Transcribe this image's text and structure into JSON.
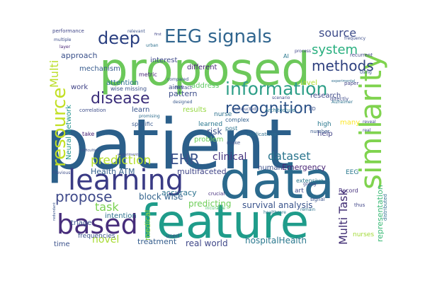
{
  "word_cloud": {
    "words": [
      {
        "text": "patient",
        "color": "#2b5f8a"
      },
      {
        "text": "data",
        "color": "#2b6a8d"
      },
      {
        "text": "feature",
        "color": "#1f9c8a"
      },
      {
        "text": "proposed",
        "color": "#6cc85a"
      },
      {
        "text": "similarity",
        "color": "#7fd34e"
      },
      {
        "text": "learning",
        "color": "#3a3b85"
      },
      {
        "text": "based",
        "color": "#472d7b"
      },
      {
        "text": "EEG signals",
        "color": "#30658e"
      },
      {
        "text": "information",
        "color": "#2e9f88"
      },
      {
        "text": "deep",
        "color": "#2a3f80"
      },
      {
        "text": "resource",
        "color": "#c2df23"
      },
      {
        "text": "disease",
        "color": "#3b2e7a"
      },
      {
        "text": "recognition",
        "color": "#2c5186"
      },
      {
        "text": "propose",
        "color": "#3f4a8a"
      },
      {
        "text": "methods",
        "color": "#2d3f7e"
      },
      {
        "text": "system",
        "color": "#29af7f"
      },
      {
        "text": "source",
        "color": "#3e4c8a"
      },
      {
        "text": "prediction",
        "color": "#b5de2b"
      },
      {
        "text": "EHR",
        "color": "#3a528b"
      },
      {
        "text": "task",
        "color": "#7ad151"
      },
      {
        "text": "dataset",
        "color": "#2b758e"
      },
      {
        "text": "Multi Task",
        "color": "#3f2b72"
      },
      {
        "text": "novel",
        "color": "#a8db34"
      },
      {
        "text": "Health ATM",
        "color": "#34618d"
      },
      {
        "text": "clinical",
        "color": "#46337e"
      },
      {
        "text": "survival analysis",
        "color": "#3a548c"
      },
      {
        "text": "hospitalHealth",
        "color": "#2a788e"
      },
      {
        "text": "real world",
        "color": "#3f4788"
      },
      {
        "text": "treatment",
        "color": "#355e8d"
      },
      {
        "text": "accuracy",
        "color": "#2c728e"
      },
      {
        "text": "predicting",
        "color": "#6ece58"
      },
      {
        "text": "block wise",
        "color": "#33638d"
      },
      {
        "text": "multifaceted",
        "color": "#404588"
      },
      {
        "text": "Emergency",
        "color": "#482475"
      },
      {
        "text": "Multi",
        "color": "#bade28"
      },
      {
        "text": "approach",
        "color": "#3b518b"
      },
      {
        "text": "mechanism",
        "color": "#375b8d"
      },
      {
        "text": "different",
        "color": "#482878"
      },
      {
        "text": "interest",
        "color": "#3e4989"
      },
      {
        "text": "attention",
        "color": "#2d708e"
      },
      {
        "text": "work",
        "color": "#414487"
      },
      {
        "text": "learn",
        "color": "#39558c"
      },
      {
        "text": "pattern",
        "color": "#3d4e8a"
      },
      {
        "text": "results",
        "color": "#95d840"
      },
      {
        "text": "risk",
        "color": "#3b528b"
      },
      {
        "text": "problem",
        "color": "#6ece58"
      },
      {
        "text": "learned",
        "color": "#2a768e"
      },
      {
        "text": "address",
        "color": "#5ec962"
      },
      {
        "text": "representation",
        "color": "#3aba76"
      },
      {
        "text": "research",
        "color": "#3e4a89"
      },
      {
        "text": "level",
        "color": "#b0dd2f"
      },
      {
        "text": "Neural Network",
        "color": "#21918c"
      },
      {
        "text": "human",
        "color": "#3c4f8a"
      },
      {
        "text": "medical",
        "color": "#8fd744"
      },
      {
        "text": "triage",
        "color": "#3a548c"
      },
      {
        "text": "intention",
        "color": "#2c718e"
      },
      {
        "text": "help",
        "color": "#414387"
      },
      {
        "text": "many",
        "color": "#fde725"
      },
      {
        "text": "Record",
        "color": "#46327e"
      },
      {
        "text": "EEG",
        "color": "#2a788e"
      },
      {
        "text": "nurse",
        "color": "#2d718e"
      },
      {
        "text": "nurses",
        "color": "#a2da37"
      },
      {
        "text": "time",
        "color": "#3b518b"
      },
      {
        "text": "performance",
        "color": "#404688"
      },
      {
        "text": "frequencies",
        "color": "#3a538b"
      },
      {
        "text": "aims",
        "color": "#3e4a89"
      },
      {
        "text": "metric",
        "color": "#482677"
      },
      {
        "text": "high",
        "color": "#2a788e"
      },
      {
        "text": "used",
        "color": "#414487"
      },
      {
        "text": "art",
        "color": "#3f4889"
      },
      {
        "text": "extensive",
        "color": "#2a788e"
      },
      {
        "text": "extract",
        "color": "#3e4c8a"
      },
      {
        "text": "wise missing",
        "color": "#3b528b"
      },
      {
        "text": "specific",
        "color": "#38588c"
      },
      {
        "text": "correlation",
        "color": "#3d4d8a"
      },
      {
        "text": "take",
        "color": "#482173"
      },
      {
        "text": "post",
        "color": "#2c728e"
      },
      {
        "text": "thus",
        "color": "#404588"
      },
      {
        "text": "complex",
        "color": "#34618d"
      },
      {
        "text": "Architecture",
        "color": "#2a788e"
      },
      {
        "text": "ED",
        "color": "#3b528b"
      },
      {
        "text": "directly",
        "color": "#3e4989"
      },
      {
        "text": "number",
        "color": "#38598c"
      },
      {
        "text": "applications",
        "color": "#2e6e8e"
      },
      {
        "text": "conducted",
        "color": "#3c4f8a"
      },
      {
        "text": "paper",
        "color": "#414487"
      },
      {
        "text": "signal",
        "color": "#3a548c"
      },
      {
        "text": "crucial",
        "color": "#46307e"
      },
      {
        "text": "incurable",
        "color": "#4fc16b"
      },
      {
        "text": "healthcare",
        "color": "#2a768e"
      },
      {
        "text": "giving",
        "color": "#3e4a89"
      },
      {
        "text": "make",
        "color": "#3b518b"
      },
      {
        "text": "distributed",
        "color": "#2d708e"
      },
      {
        "text": "recurrent",
        "color": "#404688"
      },
      {
        "text": "frequency",
        "color": "#3d4e8a"
      },
      {
        "text": "Alzheimer",
        "color": "#2c728e"
      },
      {
        "text": "Using",
        "color": "#39568c"
      },
      {
        "text": "experiments",
        "color": "#3e4c8a"
      },
      {
        "text": "promising",
        "color": "#2e6d8e"
      },
      {
        "text": "compared",
        "color": "#3a548c"
      },
      {
        "text": "designed",
        "color": "#38588c"
      },
      {
        "text": "scenario",
        "color": "#3e4a89"
      },
      {
        "text": "layer",
        "color": "#482475"
      },
      {
        "text": "urban",
        "color": "#2d708e"
      },
      {
        "text": "relevant",
        "color": "#3b528b"
      },
      {
        "text": "multiple",
        "color": "#3d4d8a"
      },
      {
        "text": "first",
        "color": "#404588"
      },
      {
        "text": "AI",
        "color": "#2a788e"
      },
      {
        "text": "real",
        "color": "#3e4989"
      },
      {
        "text": "difficulties",
        "color": "#3c508b"
      },
      {
        "text": "process",
        "color": "#404688"
      },
      {
        "text": "redundant",
        "color": "#3a548c"
      },
      {
        "text": "reveal",
        "color": "#3e4a89"
      },
      {
        "text": "remain",
        "color": "#2c728e"
      },
      {
        "text": "Previous",
        "color": "#3d4e8a"
      },
      {
        "text": "experimental",
        "color": "#2e6d8e"
      }
    ]
  }
}
